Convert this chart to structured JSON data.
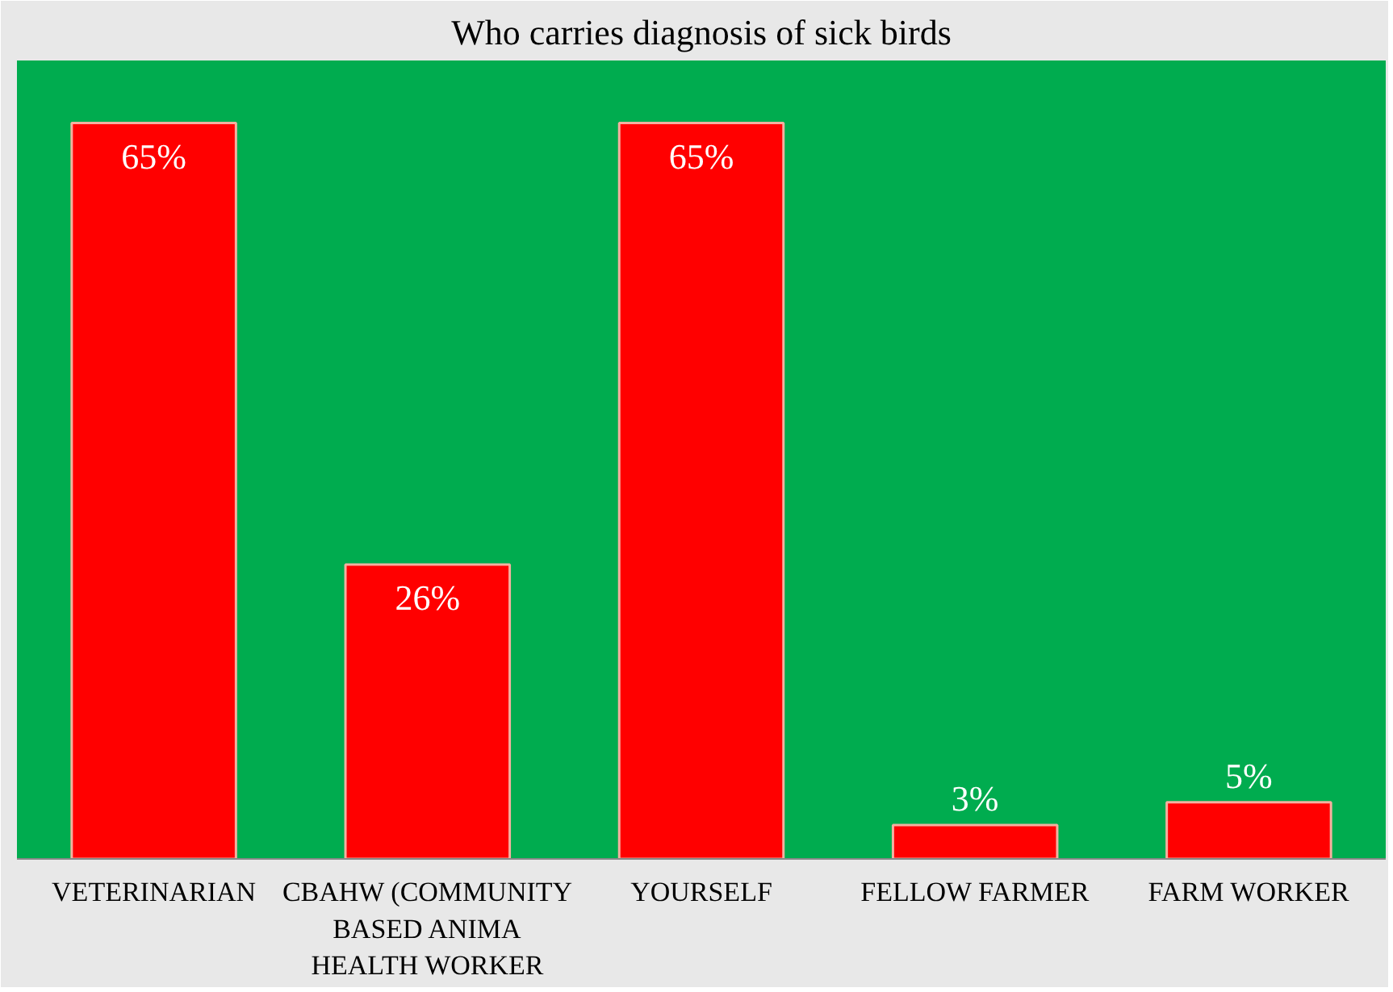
{
  "chart_data": {
    "type": "bar",
    "title": "Who carries diagnosis of sick birds",
    "categories": [
      "VETERINARIAN",
      "CBAHW (COMMUNITY BASED ANIMA HEALTH WORKER",
      "YOURSELF",
      "FELLOW FARMER",
      "FARM WORKER"
    ],
    "values": [
      65,
      26,
      65,
      3,
      5
    ],
    "value_labels": [
      "65%",
      "26%",
      "65%",
      "3%",
      "5%"
    ],
    "color": "#ff0000",
    "grid": false
  }
}
